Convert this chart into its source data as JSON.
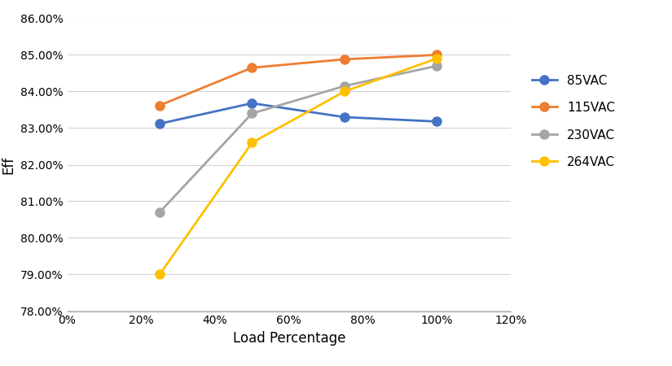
{
  "series": [
    {
      "label": "85VAC",
      "color": "#4472C4",
      "marker": "o",
      "x": [
        0.25,
        0.5,
        0.75,
        1.0
      ],
      "y": [
        0.8312,
        0.8368,
        0.833,
        0.8318
      ]
    },
    {
      "label": "115VAC",
      "color": "#ED7D31",
      "marker": "o",
      "x": [
        0.25,
        0.5,
        0.75,
        1.0
      ],
      "y": [
        0.8362,
        0.8465,
        0.8488,
        0.85
      ]
    },
    {
      "label": "230VAC",
      "color": "#A5A5A5",
      "marker": "o",
      "x": [
        0.25,
        0.5,
        0.75,
        1.0
      ],
      "y": [
        0.807,
        0.834,
        0.8415,
        0.847
      ]
    },
    {
      "label": "264VAC",
      "color": "#FFC000",
      "marker": "o",
      "x": [
        0.25,
        0.5,
        0.75,
        1.0
      ],
      "y": [
        0.79,
        0.826,
        0.84,
        0.849
      ]
    }
  ],
  "xlabel": "Load Percentage",
  "ylabel": "Eff",
  "xlim": [
    0.0,
    1.2
  ],
  "ylim": [
    0.78,
    0.86
  ],
  "xticks": [
    0.0,
    0.2,
    0.4,
    0.6,
    0.8,
    1.0,
    1.2
  ],
  "yticks": [
    0.78,
    0.79,
    0.8,
    0.81,
    0.82,
    0.83,
    0.84,
    0.85,
    0.86
  ],
  "background_color": "#FFFFFF",
  "grid_color": "#D3D3D3",
  "line_width": 2.0,
  "marker_size": 8,
  "xlabel_fontsize": 12,
  "ylabel_fontsize": 12,
  "tick_fontsize": 10,
  "legend_fontsize": 11
}
